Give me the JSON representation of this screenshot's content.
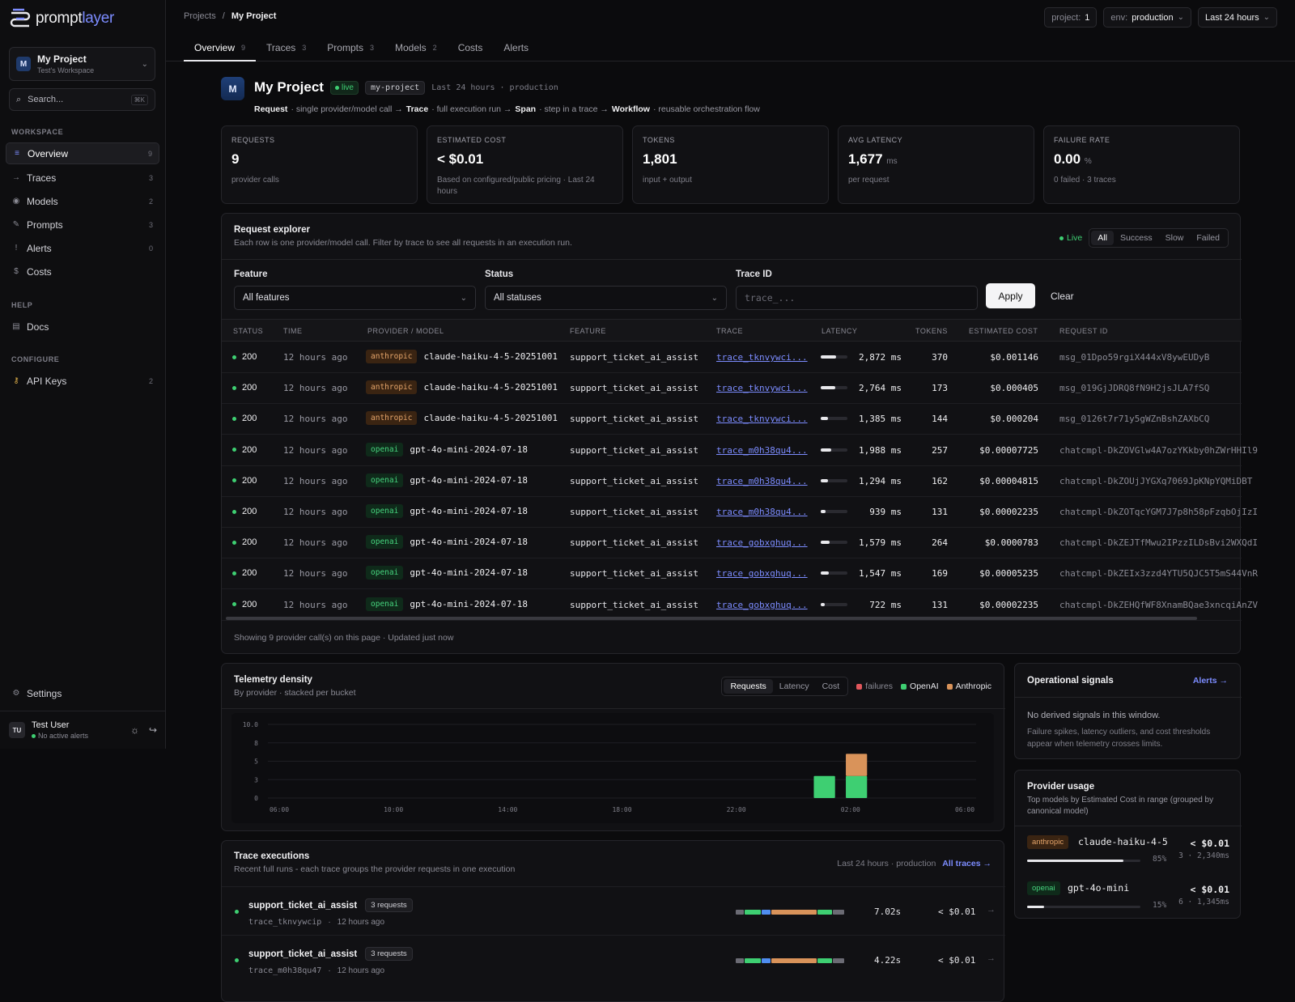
{
  "brand": {
    "prompt": "prompt",
    "layer": "layer"
  },
  "sidebar": {
    "project": {
      "avatar": "M",
      "name": "My Project",
      "workspace": "Test's Workspace"
    },
    "search": {
      "placeholder": "Search...",
      "shortcut": "⌘K"
    },
    "sections": {
      "workspace": "WORKSPACE",
      "help": "HELP",
      "configure": "CONFIGURE"
    },
    "workspace_items": [
      {
        "label": "Overview",
        "count": "9",
        "icon": "overview-icon"
      },
      {
        "label": "Traces",
        "count": "3",
        "icon": "traces-icon"
      },
      {
        "label": "Models",
        "count": "2",
        "icon": "models-icon"
      },
      {
        "label": "Prompts",
        "count": "3",
        "icon": "prompts-icon"
      },
      {
        "label": "Alerts",
        "count": "0",
        "icon": "alerts-icon"
      },
      {
        "label": "Costs",
        "count": "",
        "icon": "costs-icon"
      }
    ],
    "help_items": [
      {
        "label": "Docs",
        "icon": "docs-icon"
      }
    ],
    "configure_items": [
      {
        "label": "API Keys",
        "count": "2",
        "icon": "key-icon"
      }
    ],
    "settings": "Settings",
    "user": {
      "initials": "TU",
      "name": "Test User",
      "status": "No active alerts"
    }
  },
  "topbar": {
    "crumbs": {
      "root": "Projects",
      "sep": "/",
      "current": "My Project"
    },
    "filters": {
      "project_label": "project:",
      "project_value": "1",
      "env_label": "env:",
      "env_value": "production",
      "range": "Last 24 hours"
    },
    "tabs": [
      {
        "label": "Overview",
        "count": "9"
      },
      {
        "label": "Traces",
        "count": "3"
      },
      {
        "label": "Prompts",
        "count": "3"
      },
      {
        "label": "Models",
        "count": "2"
      },
      {
        "label": "Costs",
        "count": ""
      },
      {
        "label": "Alerts",
        "count": ""
      }
    ]
  },
  "header": {
    "avatar": "M",
    "title": "My Project",
    "live": "live",
    "slug": "my-project",
    "meta": "Last 24 hours · production",
    "legend": {
      "t1": "Request",
      "d1": "· single provider/model call →",
      "t2": "Trace",
      "d2": "· full execution run →",
      "t3": "Span",
      "d3": "· step in a trace →",
      "t4": "Workflow",
      "d4": "· reusable orchestration flow"
    }
  },
  "kpis": [
    {
      "label": "REQUESTS",
      "value": "9",
      "unit": "",
      "sub": "provider calls"
    },
    {
      "label": "ESTIMATED COST",
      "value": "< $0.01",
      "unit": "",
      "sub": "Based on configured/public pricing · Last 24 hours"
    },
    {
      "label": "TOKENS",
      "value": "1,801",
      "unit": "",
      "sub": "input + output"
    },
    {
      "label": "AVG LATENCY",
      "value": "1,677",
      "unit": "ms",
      "sub": "per request"
    },
    {
      "label": "FAILURE RATE",
      "value": "0.00",
      "unit": "%",
      "sub": "0 failed · 3 traces"
    }
  ],
  "explorer": {
    "title": "Request explorer",
    "subtitle": "Each row is one provider/model call. Filter by trace to see all requests in an execution run.",
    "live": "Live",
    "segments": [
      "All",
      "Success",
      "Slow",
      "Failed"
    ],
    "filters": {
      "feature_label": "Feature",
      "feature_value": "All features",
      "status_label": "Status",
      "status_value": "All statuses",
      "trace_label": "Trace ID",
      "trace_placeholder": "trace_...",
      "apply": "Apply",
      "clear": "Clear"
    },
    "columns": [
      "STATUS",
      "TIME",
      "PROVIDER / MODEL",
      "FEATURE",
      "TRACE",
      "LATENCY",
      "TOKENS",
      "ESTIMATED COST",
      "REQUEST ID"
    ],
    "rows": [
      {
        "status": "200",
        "time": "12 hours ago",
        "provider": "anthropic",
        "model": "claude-haiku-4-5-20251001",
        "feature": "support_ticket_ai_assist",
        "trace": "trace_tknvywci...",
        "latency": "2,872 ms",
        "lat_frac": 0.58,
        "tokens": "370",
        "cost": "$0.001146",
        "rid": "msg_01Dpo59rgiX444xV8ywEUDyB"
      },
      {
        "status": "200",
        "time": "12 hours ago",
        "provider": "anthropic",
        "model": "claude-haiku-4-5-20251001",
        "feature": "support_ticket_ai_assist",
        "trace": "trace_tknvywci...",
        "latency": "2,764 ms",
        "lat_frac": 0.55,
        "tokens": "173",
        "cost": "$0.000405",
        "rid": "msg_019GjJDRQ8fN9H2jsJLA7fSQ"
      },
      {
        "status": "200",
        "time": "12 hours ago",
        "provider": "anthropic",
        "model": "claude-haiku-4-5-20251001",
        "feature": "support_ticket_ai_assist",
        "trace": "trace_tknvywci...",
        "latency": "1,385 ms",
        "lat_frac": 0.28,
        "tokens": "144",
        "cost": "$0.000204",
        "rid": "msg_0126t7r71y5gWZnBshZAXbCQ"
      },
      {
        "status": "200",
        "time": "12 hours ago",
        "provider": "openai",
        "model": "gpt-4o-mini-2024-07-18",
        "feature": "support_ticket_ai_assist",
        "trace": "trace_m0h38qu4...",
        "latency": "1,988 ms",
        "lat_frac": 0.4,
        "tokens": "257",
        "cost": "$0.00007725",
        "rid": "chatcmpl-DkZOVGlw4A7ozYKkby0hZWrHHIl9"
      },
      {
        "status": "200",
        "time": "12 hours ago",
        "provider": "openai",
        "model": "gpt-4o-mini-2024-07-18",
        "feature": "support_ticket_ai_assist",
        "trace": "trace_m0h38qu4...",
        "latency": "1,294 ms",
        "lat_frac": 0.26,
        "tokens": "162",
        "cost": "$0.00004815",
        "rid": "chatcmpl-DkZOUjJYGXq7069JpKNpYQMiDBT"
      },
      {
        "status": "200",
        "time": "12 hours ago",
        "provider": "openai",
        "model": "gpt-4o-mini-2024-07-18",
        "feature": "support_ticket_ai_assist",
        "trace": "trace_m0h38qu4...",
        "latency": "939 ms",
        "lat_frac": 0.19,
        "tokens": "131",
        "cost": "$0.00002235",
        "rid": "chatcmpl-DkZOTqcYGM7J7p8h58pFzqbOjIzI"
      },
      {
        "status": "200",
        "time": "12 hours ago",
        "provider": "openai",
        "model": "gpt-4o-mini-2024-07-18",
        "feature": "support_ticket_ai_assist",
        "trace": "trace_gobxghuq...",
        "latency": "1,579 ms",
        "lat_frac": 0.32,
        "tokens": "264",
        "cost": "$0.0000783",
        "rid": "chatcmpl-DkZEJTfMwu2IPzzILDsBvi2WXQdI"
      },
      {
        "status": "200",
        "time": "12 hours ago",
        "provider": "openai",
        "model": "gpt-4o-mini-2024-07-18",
        "feature": "support_ticket_ai_assist",
        "trace": "trace_gobxghuq...",
        "latency": "1,547 ms",
        "lat_frac": 0.31,
        "tokens": "169",
        "cost": "$0.00005235",
        "rid": "chatcmpl-DkZEIx3zzd4YTU5QJC5T5mS44VnR"
      },
      {
        "status": "200",
        "time": "12 hours ago",
        "provider": "openai",
        "model": "gpt-4o-mini-2024-07-18",
        "feature": "support_ticket_ai_assist",
        "trace": "trace_gobxghuq...",
        "latency": "722 ms",
        "lat_frac": 0.15,
        "tokens": "131",
        "cost": "$0.00002235",
        "rid": "chatcmpl-DkZEHQfWF8XnamBQae3xncqiAnZV"
      }
    ],
    "footer": "Showing 9 provider call(s) on this page · Updated just now"
  },
  "telemetry": {
    "title": "Telemetry density",
    "subtitle": "By provider · stacked per bucket",
    "segments": [
      "Requests",
      "Latency",
      "Cost"
    ],
    "legend": [
      {
        "label": "failures",
        "color": "#e0565b"
      },
      {
        "label": "OpenAI",
        "color": "#3ecf72"
      },
      {
        "label": "Anthropic",
        "color": "#d9935a"
      }
    ]
  },
  "chart_data": {
    "type": "bar",
    "stacked": true,
    "yticks": [
      "10.0",
      "8",
      "5",
      "3",
      "0"
    ],
    "ylim": [
      0,
      10
    ],
    "xticks": [
      "06:00",
      "10:00",
      "14:00",
      "18:00",
      "22:00",
      "02:00",
      "06:00"
    ],
    "series": [
      {
        "name": "OpenAI",
        "color": "#3ecf72",
        "points": [
          {
            "bucket": 17,
            "value": 3
          },
          {
            "bucket": 18,
            "value": 3
          }
        ]
      },
      {
        "name": "Anthropic",
        "color": "#d9935a",
        "points": [
          {
            "bucket": 17,
            "value": 0
          },
          {
            "bucket": 18,
            "value": 3
          }
        ]
      }
    ],
    "grid": true
  },
  "signals": {
    "title": "Operational signals",
    "link": "Alerts →",
    "empty": "No derived signals in this window.",
    "detail": "Failure spikes, latency outliers, and cost thresholds appear when telemetry crosses limits."
  },
  "usage": {
    "title": "Provider usage",
    "subtitle": "Top models by Estimated Cost in range (grouped by canonical model)",
    "rows": [
      {
        "provider": "anthropic",
        "model": "claude-haiku-4-5",
        "cost": "< $0.01",
        "pct": "85%",
        "frac": 0.85,
        "meta": "3 · 2,340ms"
      },
      {
        "provider": "openai",
        "model": "gpt-4o-mini",
        "cost": "< $0.01",
        "pct": "15%",
        "frac": 0.15,
        "meta": "6 · 1,345ms"
      }
    ]
  },
  "traces": {
    "title": "Trace executions",
    "subtitle": "Recent full runs - each trace groups the provider requests in one execution",
    "meta": "Last 24 hours · production",
    "link": "All traces →",
    "rows": [
      {
        "name": "support_ticket_ai_assist",
        "requests": "3 requests",
        "id": "trace_tknvywcip",
        "time": "12 hours ago",
        "duration": "7.02s",
        "cost": "< $0.01"
      },
      {
        "name": "support_ticket_ai_assist",
        "requests": "3 requests",
        "id": "trace_m0h38qu47",
        "time": "12 hours ago",
        "duration": "4.22s",
        "cost": "< $0.01"
      }
    ]
  }
}
